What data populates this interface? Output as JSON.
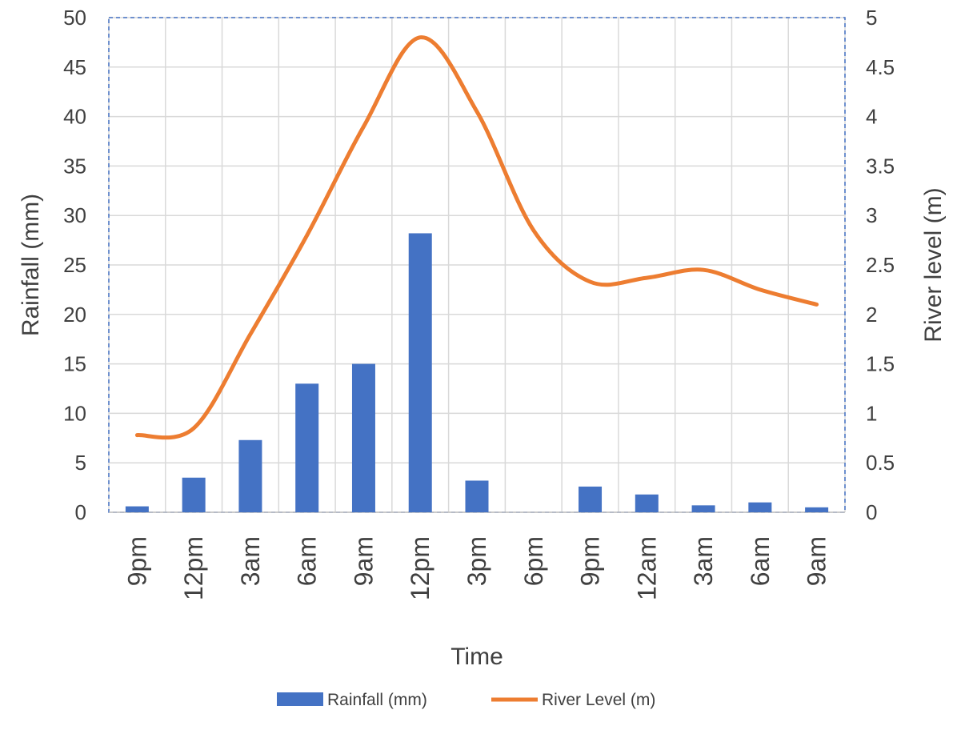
{
  "chart_data": {
    "type": "bar",
    "categories": [
      "9pm",
      "12pm",
      "3am",
      "6am",
      "9am",
      "12pm",
      "3pm",
      "6pm",
      "9pm",
      "12am",
      "3am",
      "6am",
      "9am"
    ],
    "series": [
      {
        "name": "Rainfall (mm)",
        "type": "bar",
        "axis": "left",
        "color": "#4472C4",
        "values": [
          0.6,
          3.5,
          7.3,
          13.0,
          15.0,
          28.2,
          3.2,
          0,
          2.6,
          1.8,
          0.7,
          1.0,
          0.5
        ]
      },
      {
        "name": "River Level (m)",
        "type": "line",
        "smooth": true,
        "axis": "right",
        "color": "#ED7D31",
        "values": [
          0.78,
          0.85,
          1.8,
          2.8,
          3.9,
          4.8,
          4.05,
          2.85,
          2.33,
          2.37,
          2.45,
          2.25,
          2.1
        ]
      }
    ],
    "xlabel": "Time",
    "ylabel": "Rainfall (mm)",
    "y2label": "River level (m)",
    "ylim": [
      0,
      50
    ],
    "y2lim": [
      0,
      5
    ],
    "yticks": [
      "0",
      "5",
      "10",
      "15",
      "20",
      "25",
      "30",
      "35",
      "40",
      "45",
      "50"
    ],
    "y2ticks": [
      "0",
      "0.5",
      "1",
      "1.5",
      "2",
      "2.5",
      "3",
      "3.5",
      "4",
      "4.5",
      "5"
    ],
    "grid": true,
    "legend": "bottom"
  }
}
